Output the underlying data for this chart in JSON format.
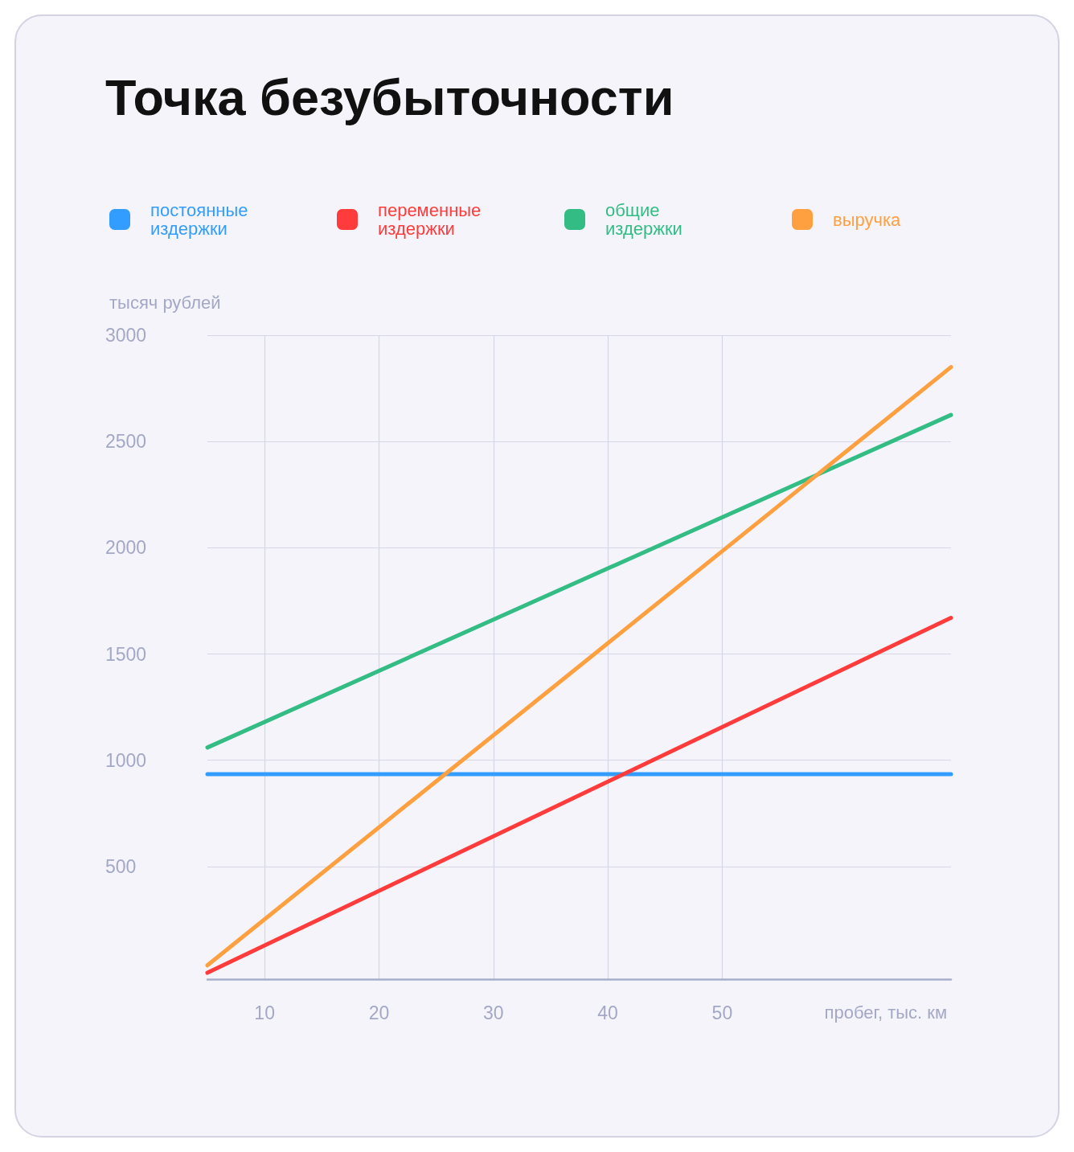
{
  "chart_data": {
    "type": "line",
    "title": "Точка безубыточности",
    "xlabel": "пробег, тыс. км",
    "ylabel": "тысяч рублей",
    "x": [
      5,
      70
    ],
    "series": [
      {
        "name": "постоянные издержки",
        "color": "#339dff",
        "values": [
          935,
          935
        ]
      },
      {
        "name": "переменные издержки",
        "color": "#ff3b3b",
        "values": [
          0,
          1670
        ]
      },
      {
        "name": "общие издержки",
        "color": "#33bd85",
        "values": [
          1060,
          2625
        ]
      },
      {
        "name": "выручка",
        "color": "#ffa040",
        "values": [
          35,
          2850
        ]
      }
    ],
    "xlim": [
      5,
      70
    ],
    "xticks": [
      10,
      20,
      30,
      40,
      50
    ],
    "ylim": [
      -30,
      3000
    ],
    "yticks": [
      500,
      1000,
      1500,
      2000,
      2500,
      3000
    ],
    "grid": true,
    "legend": "top left",
    "marker": "none",
    "line_style": "solid"
  }
}
